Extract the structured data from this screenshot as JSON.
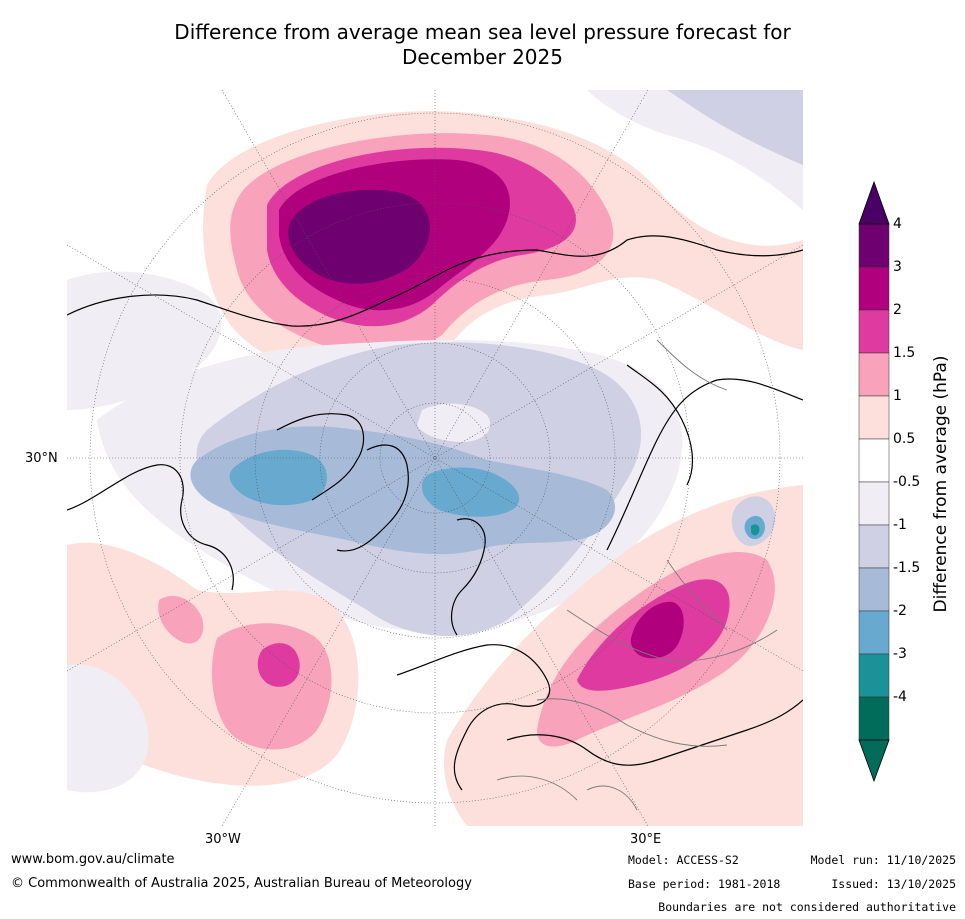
{
  "title_line1": "Difference from average mean sea level pressure forecast for",
  "title_line2": "December 2025",
  "map": {
    "projection": "north polar stereographic",
    "labels": {
      "lat": "30°N",
      "lon_left": "30°W",
      "lon_right": "30°E"
    },
    "regions": [
      {
        "name": "north-pacific-high",
        "max_level": "4"
      },
      {
        "name": "arctic-low",
        "min_level": "-3"
      },
      {
        "name": "central-asia-high",
        "max_level": "3"
      },
      {
        "name": "north-atlantic-high",
        "max_level": "2"
      }
    ]
  },
  "colorbar": {
    "title": "Difference from average (hPa)",
    "ticks": [
      "4",
      "3",
      "2",
      "1.5",
      "1",
      "0.5",
      "-0.5",
      "-1",
      "-1.5",
      "-2",
      "-3",
      "-4"
    ],
    "colors": [
      "#6e0070",
      "#b0007e",
      "#de3aa0",
      "#f8a2bb",
      "#fde0dc",
      "#ffffff",
      "#f1edf4",
      "#cfd0e4",
      "#a7bbd9",
      "#68a9cf",
      "#1b9198",
      "#016c59"
    ],
    "over_color": "#4b0066",
    "under_color": "#016c59"
  },
  "footer": {
    "website": "www.bom.gov.au/climate",
    "copyright": "© Commonwealth of Australia 2025, Australian Bureau of Meteorology",
    "model": "Model: ACCESS-S2",
    "base_period": "Base period: 1981-2018",
    "model_run": "Model run: 11/10/2025",
    "issued": "Issued: 13/10/2025",
    "disclaimer": "Boundaries are not considered authoritative"
  }
}
